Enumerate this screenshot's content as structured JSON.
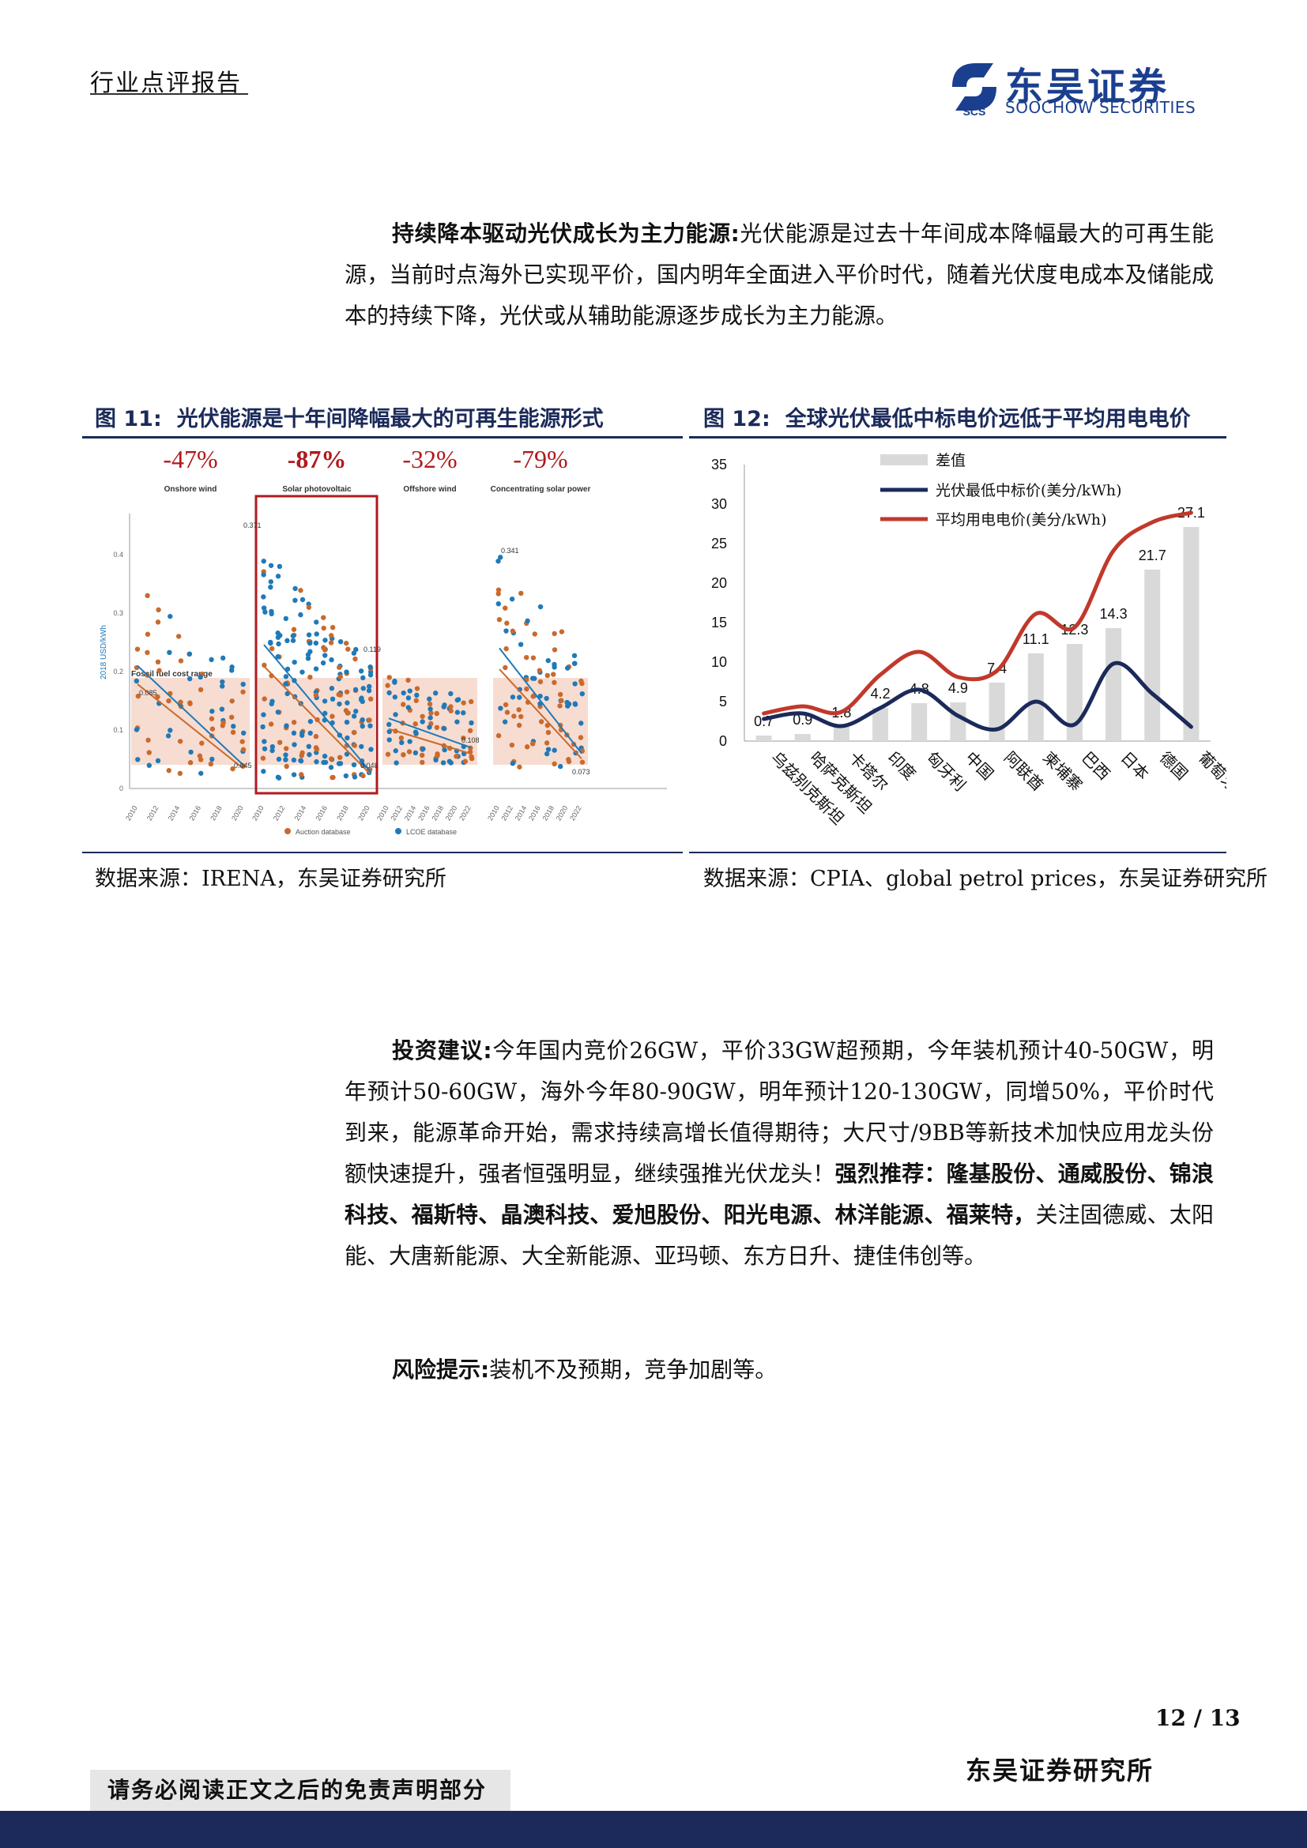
{
  "header": {
    "title": "行业点评报告",
    "logo_cn": "东吴证券",
    "logo_en": "SOOCHOW SECURITIES",
    "logo_badge": "SCS"
  },
  "para1": {
    "lead": "持续降本驱动光伏成长为主力能源:",
    "text": "光伏能源是过去十年间成本降幅最大的可再生能源，当前时点海外已实现平价，国内明年全面进入平价时代，随着光伏度电成本及储能成本的持续下降，光伏或从辅助能源逐步成长为主力能源。"
  },
  "fig11": {
    "label": "图 11:",
    "title": "光伏能源是十年间降幅最大的可再生能源形式",
    "source": "数据来源：IRENA，东吴证券研究所",
    "panels": [
      {
        "pct": "-47%",
        "name": "Onshore wind",
        "start_label": "0.085",
        "end_label": "0.045"
      },
      {
        "pct": "-87%",
        "name": "Solar photovoltaic",
        "start_label": "0.371",
        "end_label": "0.048"
      },
      {
        "pct": "-32%",
        "name": "Offshore wind",
        "start_label": "",
        "end_label": "0.108"
      },
      {
        "pct": "-79%",
        "name": "Concentrating solar power",
        "start_label": "0.341",
        "end_label": "0.073"
      }
    ],
    "y_axis_label": "2018 USD/kWh",
    "y_ticks": [
      "0",
      "0.1",
      "0.2",
      "0.3",
      "0.4"
    ],
    "fossil_label": "Fossil fuel cost range",
    "mid_label": "0.119",
    "x_ticks_a": [
      "2010",
      "2012",
      "2014",
      "2016",
      "2018",
      "2020"
    ],
    "x_ticks_b": [
      "2010",
      "2012",
      "2014",
      "2016",
      "2018",
      "2020",
      "2022"
    ],
    "legend": {
      "auction": "Auction database",
      "lcoe": "LCOE database"
    },
    "colors": {
      "auction": "#c96a2c",
      "lcoe": "#1f7ab8",
      "highlight": "#b0191e",
      "fossil": "#f7dcd2"
    }
  },
  "fig12": {
    "label": "图 12:",
    "title": "全球光伏最低中标电价远低于平均用电电价",
    "source": "数据来源：CPIA、global petrol prices，东吴证券研究所",
    "chart_data": {
      "type": "bar",
      "categories": [
        "乌兹别克斯坦",
        "哈萨克斯坦",
        "卡塔尔",
        "印度",
        "匈牙利",
        "中国",
        "阿联酋",
        "柬埔寨",
        "巴西",
        "日本",
        "德国",
        "葡萄牙"
      ],
      "series": [
        {
          "name": "差值",
          "type": "bar",
          "values": [
            0.7,
            0.9,
            1.8,
            4.2,
            4.8,
            4.9,
            7.4,
            11.1,
            12.3,
            14.3,
            21.7,
            27.1
          ],
          "color": "#d9d9d9"
        },
        {
          "name": "光伏最低中标价(美分/kWh)",
          "type": "line",
          "values": [
            2.8,
            3.5,
            1.9,
            4.2,
            6.5,
            3.2,
            1.5,
            5.0,
            2.1,
            9.8,
            6.0,
            1.8
          ],
          "color": "#1b2a5a"
        },
        {
          "name": "平均用电电价(美分/kWh)",
          "type": "line",
          "values": [
            3.5,
            4.4,
            3.7,
            8.4,
            11.3,
            8.1,
            8.9,
            16.1,
            14.4,
            24.1,
            27.7,
            28.9
          ],
          "color": "#c0392b"
        }
      ],
      "data_labels": [
        "0.7",
        "0.9",
        "1.8",
        "4.2",
        "4.8",
        "4.9",
        "7.4",
        "11.1",
        "12.3",
        "14.3",
        "21.7",
        "27.1"
      ],
      "y_ticks": [
        "0",
        "5",
        "10",
        "15",
        "20",
        "25",
        "30",
        "35"
      ],
      "ylim": [
        0,
        35
      ],
      "title": "全球光伏最低中标电价远低于平均用电电价",
      "legend_position": "top-left"
    }
  },
  "para2": {
    "lead": "投资建议:",
    "text1": "今年国内竞价26GW，平价33GW超预期，今年装机预计40-50GW，明年预计50-60GW，海外今年80-90GW，明年预计120-130GW，同增50%，平价时代到来，能源革命开始，需求持续高增长值得期待；大尺寸/9BB等新技术加快应用龙头份额快速提升，强者恒强明显，继续强推光伏龙头！",
    "strong": "强烈推荐：隆基股份、通威股份、锦浪科技、福斯特、晶澳科技、爱旭股份、阳光电源、林洋能源、福莱特，",
    "text2": "关注固德威、太阳能、大唐新能源、大全新能源、亚玛顿、东方日升、捷佳伟创等。"
  },
  "para3": {
    "lead": "风险提示:",
    "text": "装机不及预期，竞争加剧等。"
  },
  "footer": {
    "page": "12 / 13",
    "firm": "东吴证券研究所",
    "disclaimer": "请务必阅读正文之后的免责声明部分"
  }
}
